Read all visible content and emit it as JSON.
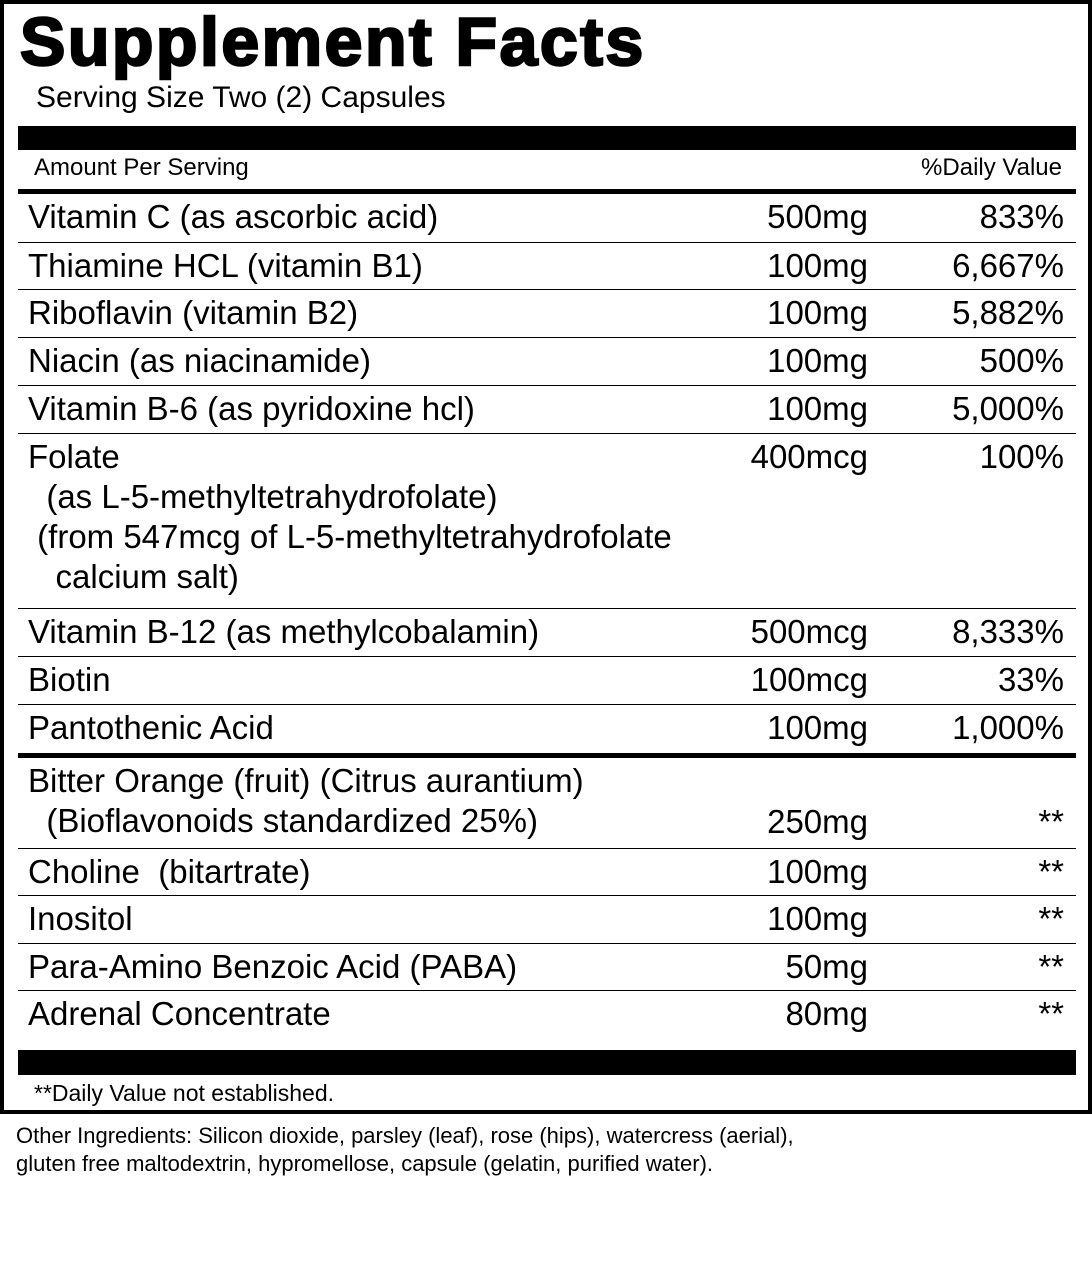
{
  "title": "Supplement Facts",
  "serving_size": "Serving Size Two (2) Capsules",
  "header": {
    "amount": "Amount Per Serving",
    "dv": "%Daily Value"
  },
  "rows": [
    {
      "name": "Vitamin C (as ascorbic acid)",
      "amount": "500mg",
      "dv": "833%"
    },
    {
      "name": "Thiamine HCL (vitamin B1)",
      "amount": "100mg",
      "dv": "6,667%"
    },
    {
      "name": "Riboflavin (vitamin B2)",
      "amount": "100mg",
      "dv": "5,882%"
    },
    {
      "name": "Niacin (as niacinamide)",
      "amount": "100mg",
      "dv": "500%"
    },
    {
      "name": "Vitamin B-6 (as pyridoxine hcl)",
      "amount": "100mg",
      "dv": "5,000%"
    },
    {
      "name": "Folate\n  (as L-5-methyltetrahydrofolate)\n (from 547mcg of L-5-methyltetrahydrofolate\n   calcium salt)",
      "amount": "400mcg",
      "dv": "100%"
    },
    {
      "name": "Vitamin B-12 (as methylcobalamin)",
      "amount": "500mcg",
      "dv": "8,333%"
    },
    {
      "name": "Biotin",
      "amount": "100mcg",
      "dv": "33%"
    },
    {
      "name": "Pantothenic Acid",
      "amount": "100mg",
      "dv": "1,000%"
    },
    {
      "name": "Bitter Orange (fruit) (Citrus aurantium)\n  (Bioflavonoids standardized 25%)",
      "amount": "250mg",
      "dv": "**"
    },
    {
      "name": "Choline  (bitartrate)",
      "amount": "100mg",
      "dv": "**"
    },
    {
      "name": "Inositol",
      "amount": "100mg",
      "dv": "**"
    },
    {
      "name": "Para-Amino Benzoic Acid (PABA)",
      "amount": "50mg",
      "dv": "**"
    },
    {
      "name": "Adrenal Concentrate",
      "amount": "80mg",
      "dv": "**"
    }
  ],
  "footnote": "**Daily Value not established.",
  "other_ingredients": [
    "Other Ingredients: Silicon dioxide,  parsley (leaf), rose (hips), watercress (aerial),",
    "gluten free maltodextrin, hypromellose, capsule (gelatin, purified water)."
  ]
}
